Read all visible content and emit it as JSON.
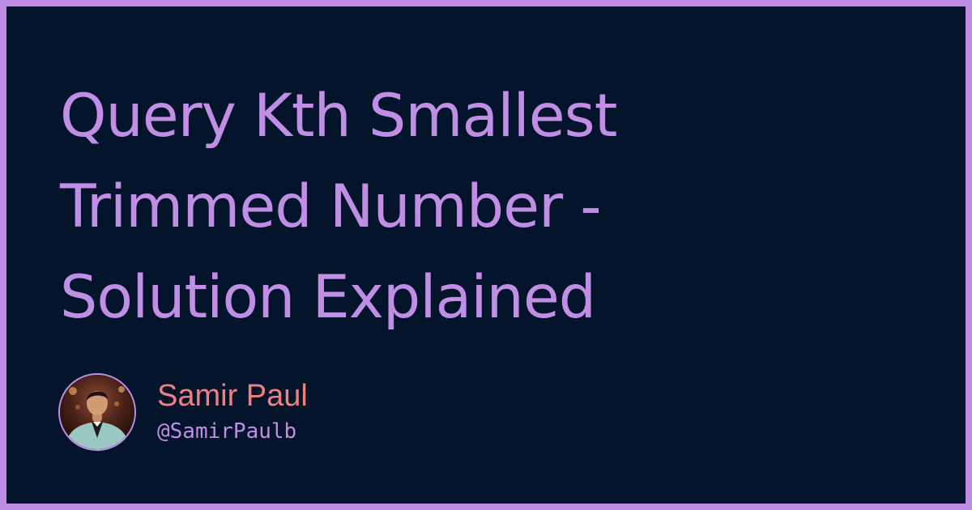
{
  "title": {
    "lines": [
      "Query Kth Smallest",
      "Trimmed Number -",
      "Solution Explained"
    ]
  },
  "author": {
    "name": "Samir Paul",
    "handle": "@SamirPaulb",
    "avatar_icon": "person-photo-avatar"
  },
  "colors": {
    "border": "#c18ee6",
    "background": "#04142a",
    "title": "#c18ee6",
    "author_name": "#ef7f83",
    "author_handle": "#c18ee6"
  }
}
